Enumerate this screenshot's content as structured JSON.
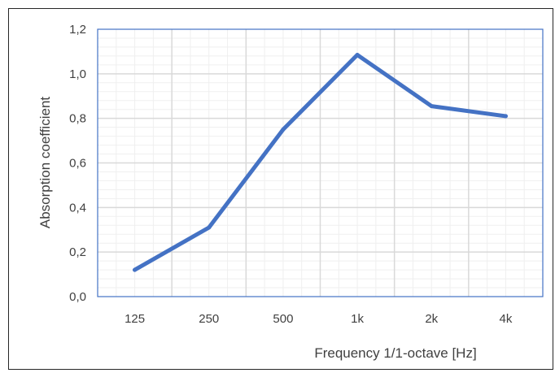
{
  "chart_data": {
    "type": "line",
    "categories": [
      "125",
      "250",
      "500",
      "1k",
      "2k",
      "4k"
    ],
    "series": [
      {
        "values": [
          0.12,
          0.31,
          0.75,
          1.085,
          0.855,
          0.81
        ],
        "color": "#4472C4"
      }
    ],
    "title": "",
    "xlabel": "Frequency 1/1-octave [Hz]",
    "ylabel": "Absorption coefficient",
    "ylim": [
      0,
      1.2
    ],
    "yticks": [
      "0,0",
      "0,2",
      "0,4",
      "0,6",
      "0,8",
      "1,0",
      "1,2"
    ],
    "grid": true,
    "legend": "none",
    "colors": {
      "plot_border": "#4472C4",
      "major_grid": "#d9d9d9",
      "minor_grid": "#efefef",
      "frame": "#262626",
      "text": "#404040"
    }
  }
}
